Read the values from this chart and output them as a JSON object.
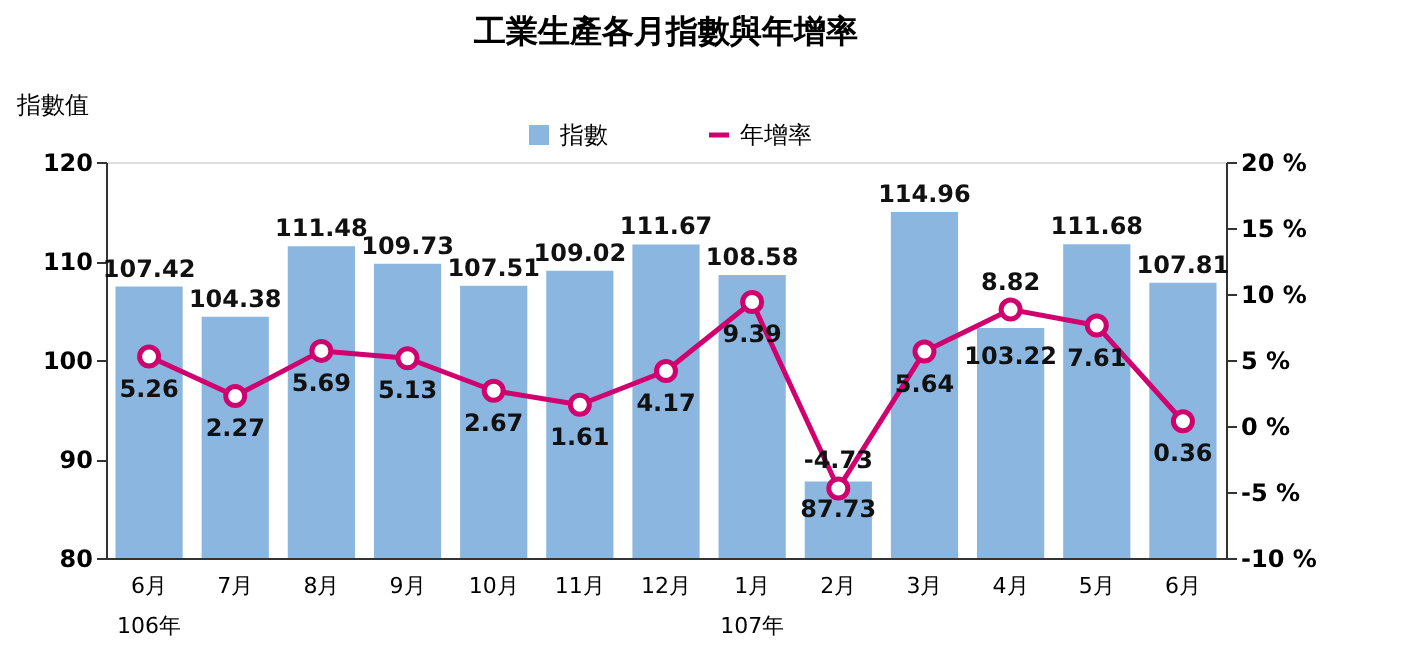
{
  "chart_data": {
    "type": "bar",
    "title": "工業生產各月指數與年增率",
    "ylabel": "指數值",
    "categories": [
      "6月\n106年",
      "7月",
      "8月",
      "9月",
      "10月",
      "11月",
      "12月",
      "1月\n107年",
      "2月",
      "3月",
      "4月",
      "5月",
      "6月"
    ],
    "series": [
      {
        "name": "指數",
        "color": "#8ab6e0",
        "values": [
          107.42,
          104.38,
          111.48,
          109.73,
          107.51,
          109.02,
          111.67,
          108.58,
          87.73,
          114.96,
          103.22,
          111.68,
          107.81
        ]
      },
      {
        "name": "年增率",
        "type": "line",
        "color": "#d0006f",
        "axis": "y2",
        "marker": "circle",
        "values": [
          5.26,
          2.27,
          5.69,
          5.13,
          2.67,
          1.61,
          4.17,
          9.39,
          -4.73,
          5.64,
          8.82,
          7.61,
          0.36
        ]
      }
    ],
    "ylim": [
      80,
      120
    ],
    "yticks": [
      80,
      90,
      100,
      110,
      120
    ],
    "y2lim": [
      -10,
      20
    ],
    "y2ticks": [
      {
        "value": -10,
        "label": "-10 %"
      },
      {
        "value": -5,
        "label": "-5 %"
      },
      {
        "value": 0,
        "label": "0 %"
      },
      {
        "value": 5,
        "label": "5 %"
      },
      {
        "value": 10,
        "label": "10 %"
      },
      {
        "value": 15,
        "label": "15 %"
      },
      {
        "value": 20,
        "label": "20 %"
      }
    ],
    "data_labels": true,
    "legend": "top",
    "grid": false
  }
}
